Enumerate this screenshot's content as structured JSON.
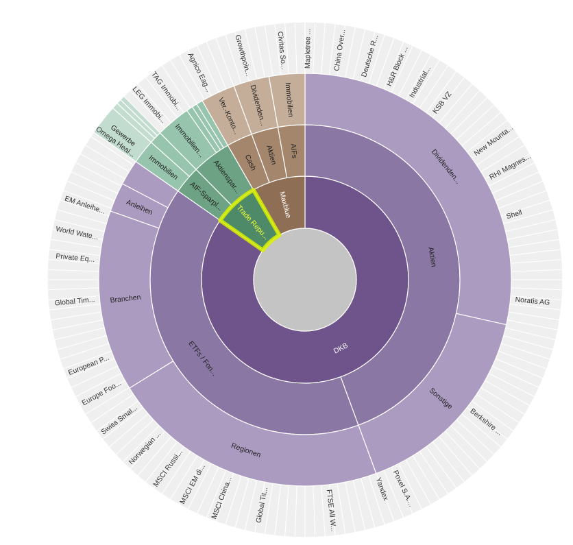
{
  "chart_data": {
    "type": "sunburst",
    "center_color": "#c4c4c4",
    "highlight_color": "#d8f000",
    "segments": [
      {
        "ring": 1,
        "start": 0,
        "end": 0.847,
        "label": "DKB",
        "color": "#6f548c",
        "light": true
      },
      {
        "ring": 1,
        "start": 0.847,
        "end": 0.917,
        "label": "Trade Repu...",
        "color": "#4e8a67",
        "highlight": true
      },
      {
        "ring": 1,
        "start": 0.917,
        "end": 1.0,
        "label": "Maxblue",
        "color": "#8e6e54",
        "light": true
      },
      {
        "ring": 2,
        "start": 0,
        "end": 0.444,
        "label": "Aktien",
        "color": "#8a77a4"
      },
      {
        "ring": 2,
        "start": 0.444,
        "end": 0.847,
        "label": "ETFs / Fon...",
        "color": "#8a77a4"
      },
      {
        "ring": 2,
        "start": 0.847,
        "end": 0.876,
        "label": "AIF-Sparpl...",
        "color": "#6da384"
      },
      {
        "ring": 2,
        "start": 0.876,
        "end": 0.917,
        "label": "Aktienspar...",
        "color": "#6da384"
      },
      {
        "ring": 2,
        "start": 0.917,
        "end": 0.944,
        "label": "Cash",
        "color": "#a3866c"
      },
      {
        "ring": 2,
        "start": 0.944,
        "end": 0.972,
        "label": "Aktien",
        "color": "#a3866c"
      },
      {
        "ring": 2,
        "start": 0.972,
        "end": 1.0,
        "label": "AIFs",
        "color": "#a3866c"
      },
      {
        "ring": 3,
        "start": 0,
        "end": 0.285,
        "label": "Dividenden...",
        "color": "#ab9bc1"
      },
      {
        "ring": 3,
        "start": 0.285,
        "end": 0.444,
        "label": "Sonstige",
        "color": "#ab9bc1"
      },
      {
        "ring": 3,
        "start": 0.444,
        "end": 0.662,
        "label": "Regionen",
        "color": "#ab9bc1"
      },
      {
        "ring": 3,
        "start": 0.662,
        "end": 0.804,
        "label": "Branchen",
        "color": "#ab9bc1"
      },
      {
        "ring": 3,
        "start": 0.804,
        "end": 0.827,
        "label": "Anleihen",
        "color": "#ab9bc1"
      },
      {
        "ring": 3,
        "start": 0.827,
        "end": 0.847,
        "label": "",
        "color": "#ab9bc1"
      },
      {
        "ring": 3,
        "start": 0.847,
        "end": 0.866,
        "label": "Immobilien",
        "color": "#96c4ad"
      },
      {
        "ring": 3,
        "start": 0.866,
        "end": 0.876,
        "label": "",
        "color": "#96c4ad"
      },
      {
        "ring": 3,
        "start": 0.876,
        "end": 0.903,
        "label": "Immobilien...",
        "color": "#96c4ad"
      },
      {
        "ring": 3,
        "start": 0.903,
        "end": 0.908,
        "label": "",
        "color": "#96c4ad"
      },
      {
        "ring": 3,
        "start": 0.908,
        "end": 0.912,
        "label": "",
        "color": "#96c4ad"
      },
      {
        "ring": 3,
        "start": 0.912,
        "end": 0.917,
        "label": "",
        "color": "#96c4ad"
      },
      {
        "ring": 3,
        "start": 0.917,
        "end": 0.944,
        "label": "Ver.-Konto...",
        "color": "#c4ae9a"
      },
      {
        "ring": 3,
        "start": 0.944,
        "end": 0.972,
        "label": "Dividenden...",
        "color": "#c4ae9a"
      },
      {
        "ring": 3,
        "start": 0.972,
        "end": 1.0,
        "label": "Immobilien",
        "color": "#c4ae9a"
      },
      {
        "ring": 4,
        "start": 0.847,
        "end": 0.866,
        "label": "Gewerbe",
        "color": "#c2ddcf"
      },
      {
        "ring": 4,
        "start": 0.866,
        "end": 0.87,
        "label": "",
        "color": "#c2ddcf"
      },
      {
        "ring": 4,
        "start": 0.87,
        "end": 0.873,
        "label": "",
        "color": "#c2ddcf"
      },
      {
        "ring": 4,
        "start": 0.873,
        "end": 0.876,
        "label": "",
        "color": "#c2ddcf"
      }
    ],
    "outer_labels": [
      {
        "angle": 0.002,
        "text": "Mapletree ..."
      },
      {
        "angle": 0.024,
        "text": "China Over..."
      },
      {
        "angle": 0.045,
        "text": "Deutsche R..."
      },
      {
        "angle": 0.065,
        "text": "H&R Block ..."
      },
      {
        "angle": 0.084,
        "text": "Industrial..."
      },
      {
        "angle": 0.105,
        "text": "KSB VZ"
      },
      {
        "angle": 0.149,
        "text": "New Mounta..."
      },
      {
        "angle": 0.17,
        "text": "RHI Magnes..."
      },
      {
        "angle": 0.202,
        "text": "Shell"
      },
      {
        "angle": 0.265,
        "text": "Noratis AG"
      },
      {
        "angle": 0.356,
        "text": "Berkshire ..."
      },
      {
        "angle": 0.43,
        "text": "Poxel S.A...."
      },
      {
        "angle": 0.444,
        "text": "Yandex"
      },
      {
        "angle": 0.482,
        "text": "FTSE All W..."
      },
      {
        "angle": 0.53,
        "text": "Global Tit..."
      },
      {
        "angle": 0.558,
        "text": "MSCI China..."
      },
      {
        "angle": 0.58,
        "text": "MSCI EM di..."
      },
      {
        "angle": 0.6,
        "text": "MSCI Russi..."
      },
      {
        "angle": 0.621,
        "text": "Norwegian ..."
      },
      {
        "angle": 0.647,
        "text": "Swiss Smal..."
      },
      {
        "angle": 0.669,
        "text": "Europe Foo..."
      },
      {
        "angle": 0.69,
        "text": "European P..."
      },
      {
        "angle": 0.735,
        "text": "Global Tim..."
      },
      {
        "angle": 0.765,
        "text": "Private Eq..."
      },
      {
        "angle": 0.782,
        "text": "World Wate..."
      },
      {
        "angle": 0.802,
        "text": "EM Anleihe..."
      },
      {
        "angle": 0.85,
        "text": "Omega Heal..."
      },
      {
        "angle": 0.884,
        "text": "LEG Immobi..."
      },
      {
        "angle": 0.899,
        "text": "TAG Immobi..."
      },
      {
        "angle": 0.925,
        "text": "Agnico Eag..."
      },
      {
        "angle": 0.957,
        "text": "Growthpoin..."
      },
      {
        "angle": 0.984,
        "text": "Civitas So..."
      }
    ]
  }
}
